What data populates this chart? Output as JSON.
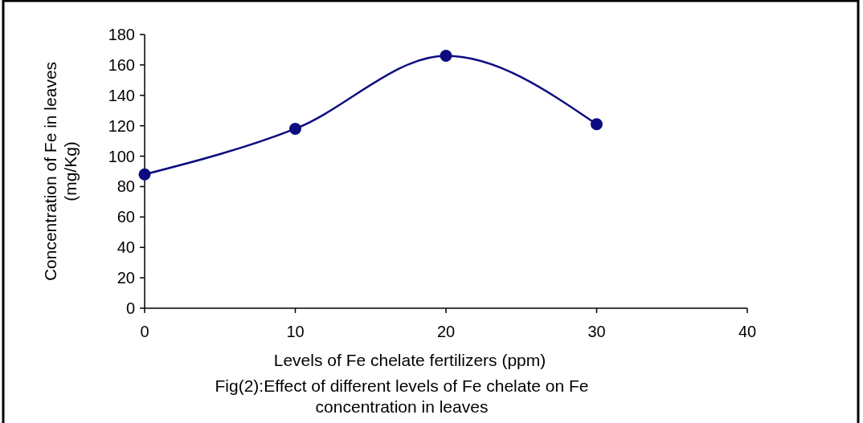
{
  "chart_data": {
    "type": "line",
    "title": "Fig(2):Effect of different levels of Fe chelate on Fe concentration in leaves",
    "xlabel": "Levels of Fe chelate fertilizers (ppm)",
    "ylabel": "Concentration of Fe in leaves (mg/Kg)",
    "x": [
      0,
      10,
      20,
      30
    ],
    "series": [
      {
        "color": "#0c0c80",
        "values": [
          88,
          118,
          166,
          121
        ]
      }
    ],
    "xlim": [
      0,
      40
    ],
    "xticks": [
      0,
      10,
      20,
      30,
      40
    ],
    "ylim": [
      0,
      180
    ],
    "yticks": [
      0,
      20,
      40,
      60,
      80,
      100,
      120,
      140,
      160,
      180
    ],
    "marker": "circle",
    "line_style": "solid",
    "grid": false
  }
}
